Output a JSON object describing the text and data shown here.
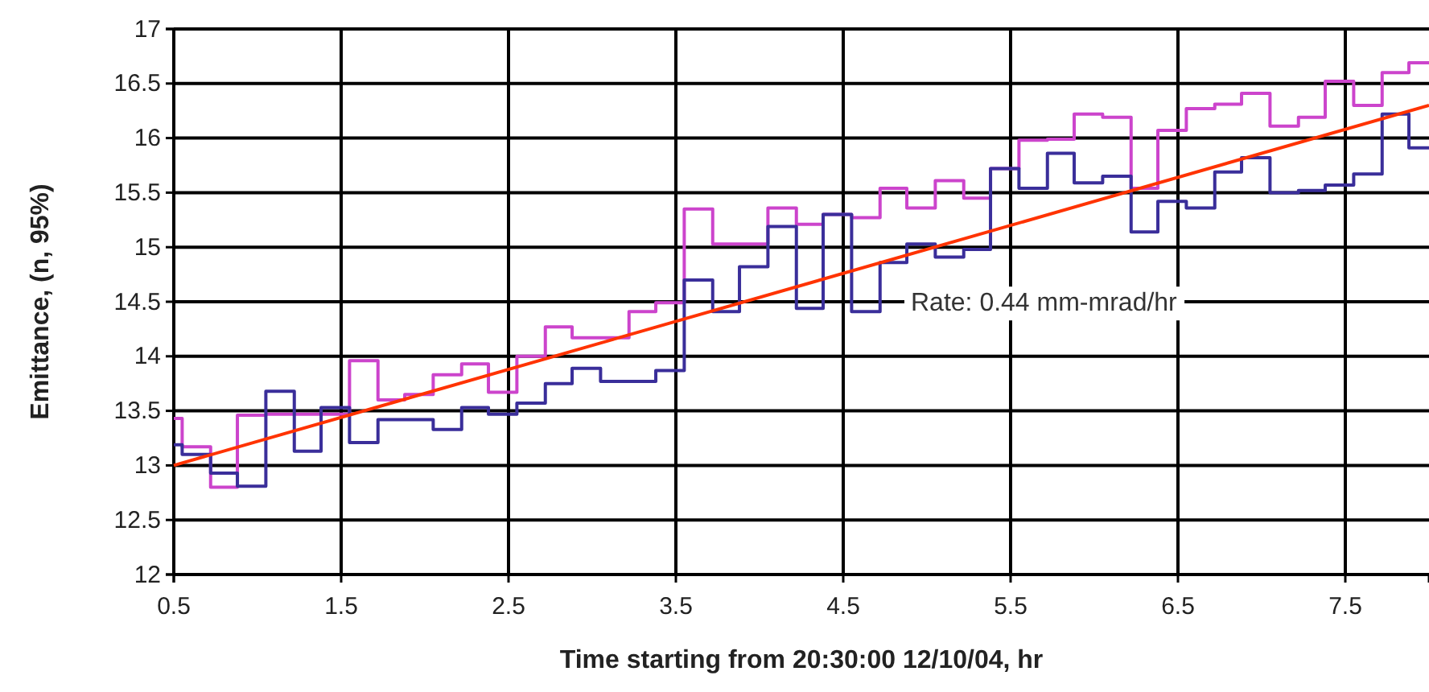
{
  "chart_data": {
    "type": "step",
    "xlabel": "Time starting from 20:30:00 12/10/04, hr",
    "ylabel": "Emittance, (n, 95%)",
    "x": [
      0.5,
      0.55,
      0.72,
      0.88,
      1.05,
      1.22,
      1.38,
      1.55,
      1.72,
      1.88,
      2.05,
      2.22,
      2.38,
      2.55,
      2.72,
      2.88,
      3.05,
      3.22,
      3.38,
      3.55,
      3.72,
      3.88,
      4.05,
      4.22,
      4.38,
      4.55,
      4.72,
      4.88,
      5.05,
      5.22,
      5.38,
      5.55,
      5.72,
      5.88,
      6.05,
      6.22,
      6.38,
      6.55,
      6.72,
      6.88,
      7.05,
      7.22,
      7.38,
      7.55,
      7.72,
      7.88,
      8.0
    ],
    "series": [
      {
        "color": "#cc44cc",
        "values": [
          13.43,
          13.17,
          12.8,
          13.46,
          13.47,
          13.47,
          13.47,
          13.96,
          13.6,
          13.65,
          13.83,
          13.93,
          13.67,
          14.0,
          14.27,
          14.17,
          14.17,
          14.41,
          14.49,
          15.35,
          15.03,
          15.03,
          15.36,
          15.21,
          15.3,
          15.27,
          15.54,
          15.36,
          15.61,
          15.45,
          15.72,
          15.98,
          15.99,
          16.22,
          16.19,
          15.54,
          16.07,
          16.27,
          16.31,
          16.41,
          16.11,
          16.19,
          16.52,
          16.3,
          16.6,
          16.69,
          16.69
        ]
      },
      {
        "color": "#3a2e9a",
        "values": [
          13.19,
          13.1,
          12.93,
          12.81,
          13.68,
          13.13,
          13.53,
          13.21,
          13.42,
          13.42,
          13.33,
          13.53,
          13.47,
          13.57,
          13.75,
          13.89,
          13.77,
          13.77,
          13.87,
          14.7,
          14.41,
          14.82,
          15.19,
          14.44,
          15.3,
          14.41,
          14.86,
          15.03,
          14.91,
          14.98,
          15.72,
          15.54,
          15.86,
          15.59,
          15.65,
          15.14,
          15.42,
          15.36,
          15.69,
          15.82,
          15.5,
          15.52,
          15.57,
          15.67,
          16.22,
          15.91,
          15.91
        ]
      },
      {
        "type": "line",
        "color": "#ff3300",
        "x": [
          0.5,
          8.0
        ],
        "values": [
          13.0,
          16.3
        ]
      }
    ],
    "annotations": [
      "Rate: 0.44 mm-mrad/hr"
    ],
    "xlim": [
      0.5,
      8.0
    ],
    "xticks": [
      0.5,
      1.5,
      2.5,
      3.5,
      4.5,
      5.5,
      6.5,
      7.5
    ],
    "ylim": [
      12,
      17
    ],
    "yticks": [
      12,
      12.5,
      13,
      13.5,
      14,
      14.5,
      15,
      15.5,
      16,
      16.5,
      17
    ],
    "grid": true,
    "marker": "none"
  }
}
